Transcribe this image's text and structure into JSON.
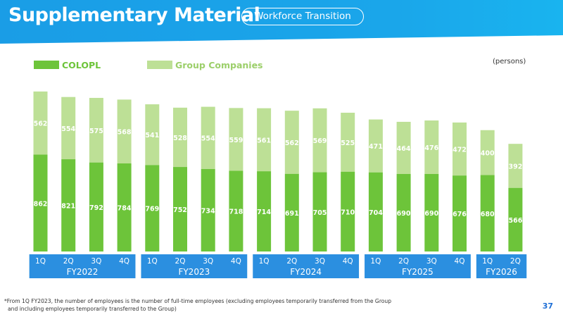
{
  "header": {
    "title": "Supplementary Material",
    "subtitle": "Workforce Transition"
  },
  "colors": {
    "header_blue": "#1aa0e6",
    "colopl": "#6dc43a",
    "group": "#bde096",
    "axis_band": "#2b8fe0"
  },
  "chart_data": {
    "type": "bar",
    "stacked": true,
    "unit": "(persons)",
    "legend": [
      "COLOPL",
      "Group Companies"
    ],
    "legend_position": "top-left",
    "categories": [
      "1Q",
      "2Q",
      "3Q",
      "4Q",
      "1Q",
      "2Q",
      "3Q",
      "4Q",
      "1Q",
      "2Q",
      "3Q",
      "4Q",
      "1Q",
      "2Q",
      "3Q",
      "4Q",
      "1Q",
      "2Q"
    ],
    "groups": [
      {
        "label": "FY2022",
        "quarters": [
          "1Q",
          "2Q",
          "3Q",
          "4Q"
        ]
      },
      {
        "label": "FY2023",
        "quarters": [
          "1Q",
          "2Q",
          "3Q",
          "4Q"
        ]
      },
      {
        "label": "FY2024",
        "quarters": [
          "1Q",
          "2Q",
          "3Q",
          "4Q"
        ]
      },
      {
        "label": "FY2025",
        "quarters": [
          "1Q",
          "2Q",
          "3Q",
          "4Q"
        ]
      },
      {
        "label": "FY2026",
        "quarters": [
          "1Q",
          "2Q"
        ]
      }
    ],
    "series": [
      {
        "name": "COLOPL",
        "values": [
          862,
          821,
          792,
          784,
          769,
          752,
          734,
          718,
          714,
          691,
          705,
          710,
          704,
          690,
          690,
          676,
          680,
          566
        ]
      },
      {
        "name": "Group Companies",
        "values": [
          562,
          554,
          575,
          568,
          541,
          528,
          554,
          559,
          561,
          562,
          569,
          525,
          471,
          464,
          476,
          472,
          400,
          392
        ]
      }
    ],
    "ylim": [
      0,
      1500
    ],
    "grid": false
  },
  "footnote": {
    "line1": "*From 1Q FY2023, the number of employees is the number of full-time employees (excluding employees temporarily transferred from the Group",
    "line2": "and including employees temporarily transferred to the Group)"
  },
  "page_number": "37"
}
